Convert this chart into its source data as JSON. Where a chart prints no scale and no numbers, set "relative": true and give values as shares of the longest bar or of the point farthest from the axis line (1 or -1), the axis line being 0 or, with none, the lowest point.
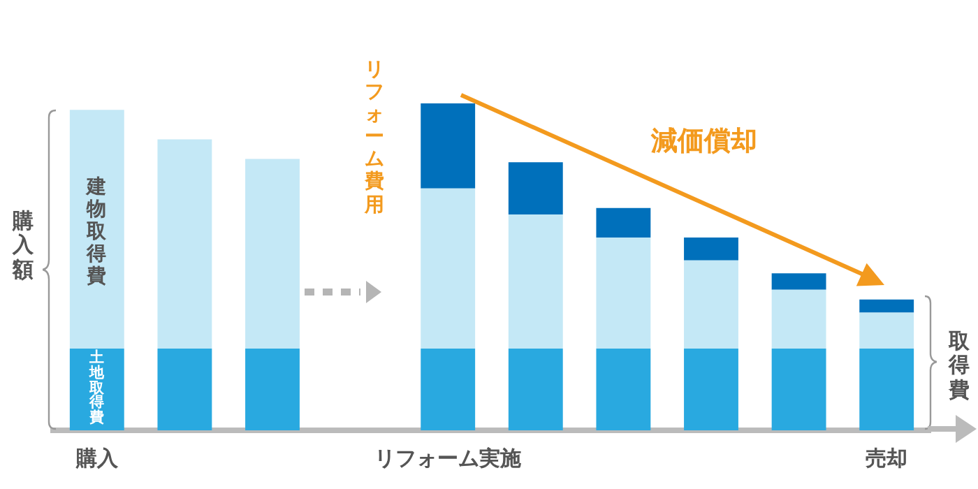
{
  "chart_data": {
    "type": "bar",
    "stacked": true,
    "relative": true,
    "categories": [
      "購入",
      null,
      null,
      null,
      "リフォーム実施",
      null,
      null,
      null,
      null,
      "売却"
    ],
    "series": [
      {
        "color": "#29a9e0",
        "values": [
          0.25,
          0.25,
          0.25,
          null,
          0.25,
          0.25,
          0.25,
          0.25,
          0.25,
          0.25
        ]
      },
      {
        "color": "#c4e8f6",
        "values": [
          0.73,
          0.64,
          0.58,
          null,
          0.49,
          0.41,
          0.34,
          0.27,
          0.18,
          0.11
        ]
      },
      {
        "color": "#0070bb",
        "values": [
          null,
          null,
          null,
          null,
          0.26,
          0.16,
          0.09,
          0.07,
          0.05,
          0.04
        ]
      }
    ],
    "annotations": [
      "建物取得費",
      "土地取得費",
      "購入額",
      "リフォーム費用",
      "減価償却",
      "取得費"
    ]
  }
}
